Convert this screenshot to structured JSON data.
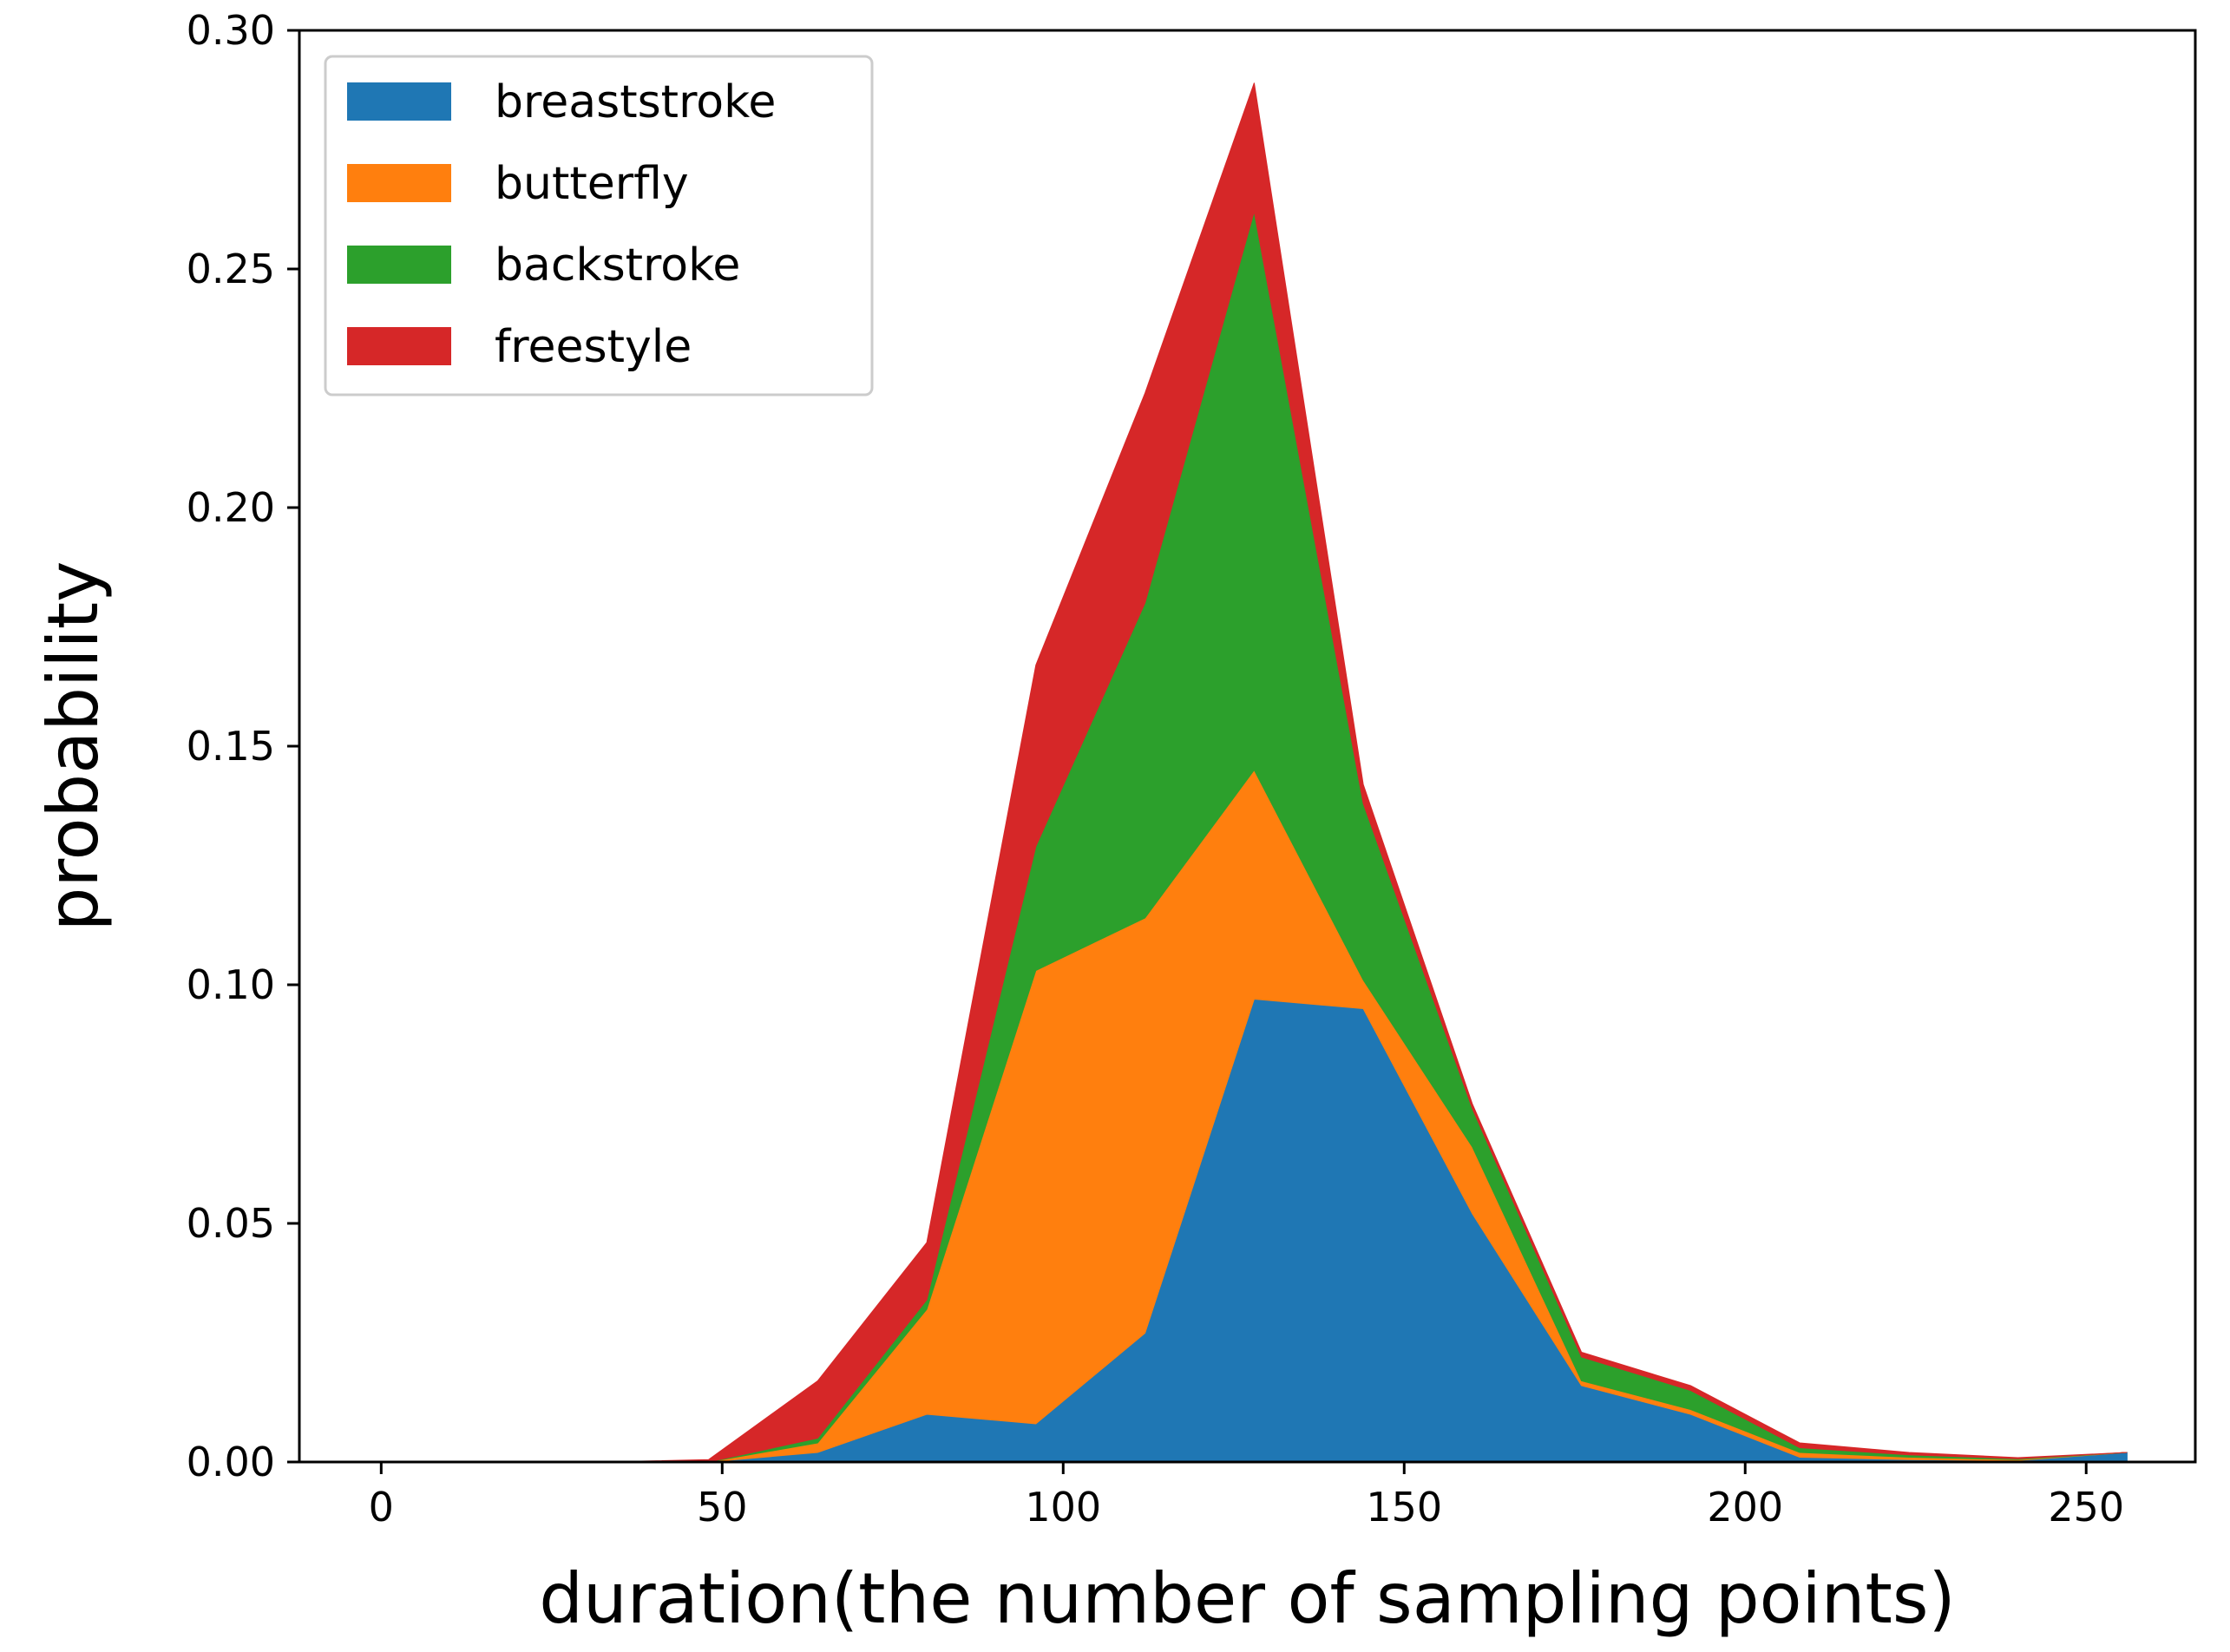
{
  "chart_data": {
    "type": "area",
    "stacked": true,
    "title": "",
    "xlabel": "duration(the number of sampling points)",
    "ylabel": "probability",
    "xlim": [
      -12,
      266
    ],
    "ylim": [
      0,
      0.3
    ],
    "xticks": [
      0,
      50,
      100,
      150,
      200,
      250
    ],
    "xtick_labels": [
      "0",
      "50",
      "100",
      "150",
      "200",
      "250"
    ],
    "yticks": [
      0,
      0.05,
      0.1,
      0.15,
      0.2,
      0.25,
      0.3
    ],
    "ytick_labels": [
      "0.00",
      "0.05",
      "0.10",
      "0.15",
      "0.20",
      "0.25",
      "0.30"
    ],
    "legend_position": "top-left",
    "x": [
      0,
      16,
      32,
      48,
      64,
      80,
      96,
      112,
      128,
      144,
      160,
      176,
      192,
      208,
      224,
      240,
      256
    ],
    "series": [
      {
        "name": "breaststroke",
        "color": "#1f77b4",
        "values": [
          0,
          0,
          0,
          0,
          0.002,
          0.01,
          0.008,
          0.027,
          0.097,
          0.095,
          0.052,
          0.016,
          0.01,
          0.001,
          0.0005,
          0.0003,
          0.002
        ]
      },
      {
        "name": "butterfly",
        "color": "#ff7f0e",
        "values": [
          0,
          0,
          0,
          0,
          0.002,
          0.022,
          0.095,
          0.087,
          0.048,
          0.006,
          0.014,
          0.001,
          0.001,
          0.001,
          0.0005,
          0.0002,
          0
        ]
      },
      {
        "name": "backstroke",
        "color": "#2ca02c",
        "values": [
          0,
          0,
          0,
          0,
          0.001,
          0.002,
          0.026,
          0.066,
          0.117,
          0.037,
          0.008,
          0.005,
          0.004,
          0.001,
          0.0005,
          0.0002,
          0
        ]
      },
      {
        "name": "freestyle",
        "color": "#d62728",
        "values": [
          0,
          0,
          0,
          0.0005,
          0.012,
          0.012,
          0.038,
          0.044,
          0.027,
          0.004,
          0.001,
          0.001,
          0.001,
          0.001,
          0.0005,
          0.0002,
          0
        ]
      }
    ]
  }
}
